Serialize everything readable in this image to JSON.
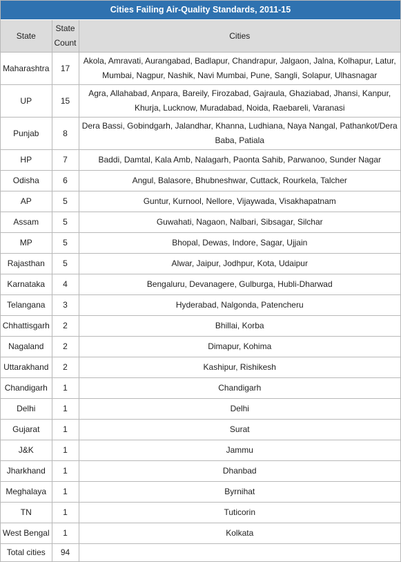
{
  "title": "Cities Failing Air-Quality Standards, 2011-15",
  "headers": {
    "state": "State",
    "count": "State Count",
    "cities": "Cities"
  },
  "rows": [
    {
      "state": "Maharashtra",
      "count": "17",
      "cities": "Akola, Amravati, Aurangabad, Badlapur, Chandrapur, Jalgaon, Jalna, Kolhapur, Latur, Mumbai, Nagpur, Nashik, Navi Mumbai, Pune, Sangli, Solapur, Ulhasnagar"
    },
    {
      "state": "UP",
      "count": "15",
      "cities": "Agra, Allahabad, Anpara, Bareily, Firozabad, Gajraula, Ghaziabad, Jhansi, Kanpur, Khurja, Lucknow, Muradabad, Noida, Raebareli, Varanasi"
    },
    {
      "state": "Punjab",
      "count": "8",
      "cities": "Dera Bassi, Gobindgarh, Jalandhar, Khanna, Ludhiana, Naya Nangal, Pathankot/Dera Baba, Patiala"
    },
    {
      "state": "HP",
      "count": "7",
      "cities": "Baddi, Damtal, Kala Amb, Nalagarh, Paonta Sahib, Parwanoo, Sunder Nagar"
    },
    {
      "state": "Odisha",
      "count": "6",
      "cities": "Angul, Balasore, Bhubneshwar, Cuttack, Rourkela, Talcher"
    },
    {
      "state": "AP",
      "count": "5",
      "cities": "Guntur, Kurnool, Nellore, Vijaywada, Visakhapatnam"
    },
    {
      "state": "Assam",
      "count": "5",
      "cities": "Guwahati, Nagaon, Nalbari, Sibsagar, Silchar"
    },
    {
      "state": "MP",
      "count": "5",
      "cities": "Bhopal, Dewas, Indore, Sagar, Ujjain"
    },
    {
      "state": "Rajasthan",
      "count": "5",
      "cities": "Alwar, Jaipur, Jodhpur, Kota, Udaipur"
    },
    {
      "state": "Karnataka",
      "count": "4",
      "cities": "Bengaluru, Devanagere, Gulburga, Hubli-Dharwad"
    },
    {
      "state": "Telangana",
      "count": "3",
      "cities": "Hyderabad, Nalgonda, Patencheru"
    },
    {
      "state": "Chhattisgarh",
      "count": "2",
      "cities": "Bhillai, Korba"
    },
    {
      "state": "Nagaland",
      "count": "2",
      "cities": "Dimapur, Kohima"
    },
    {
      "state": "Uttarakhand",
      "count": "2",
      "cities": "Kashipur, Rishikesh"
    },
    {
      "state": "Chandigarh",
      "count": "1",
      "cities": "Chandigarh"
    },
    {
      "state": "Delhi",
      "count": "1",
      "cities": "Delhi"
    },
    {
      "state": "Gujarat",
      "count": "1",
      "cities": "Surat"
    },
    {
      "state": "J&K",
      "count": "1",
      "cities": "Jammu"
    },
    {
      "state": "Jharkhand",
      "count": "1",
      "cities": "Dhanbad"
    },
    {
      "state": "Meghalaya",
      "count": "1",
      "cities": "Byrnihat"
    },
    {
      "state": "TN",
      "count": "1",
      "cities": "Tuticorin"
    },
    {
      "state": "West Bengal",
      "count": "1",
      "cities": "Kolkata"
    }
  ],
  "total": {
    "label": "Total cities",
    "value": "94"
  },
  "colors": {
    "title_bg": "#2f72b0",
    "header_bg": "#dcdcdc",
    "border": "#b8b8b8"
  }
}
